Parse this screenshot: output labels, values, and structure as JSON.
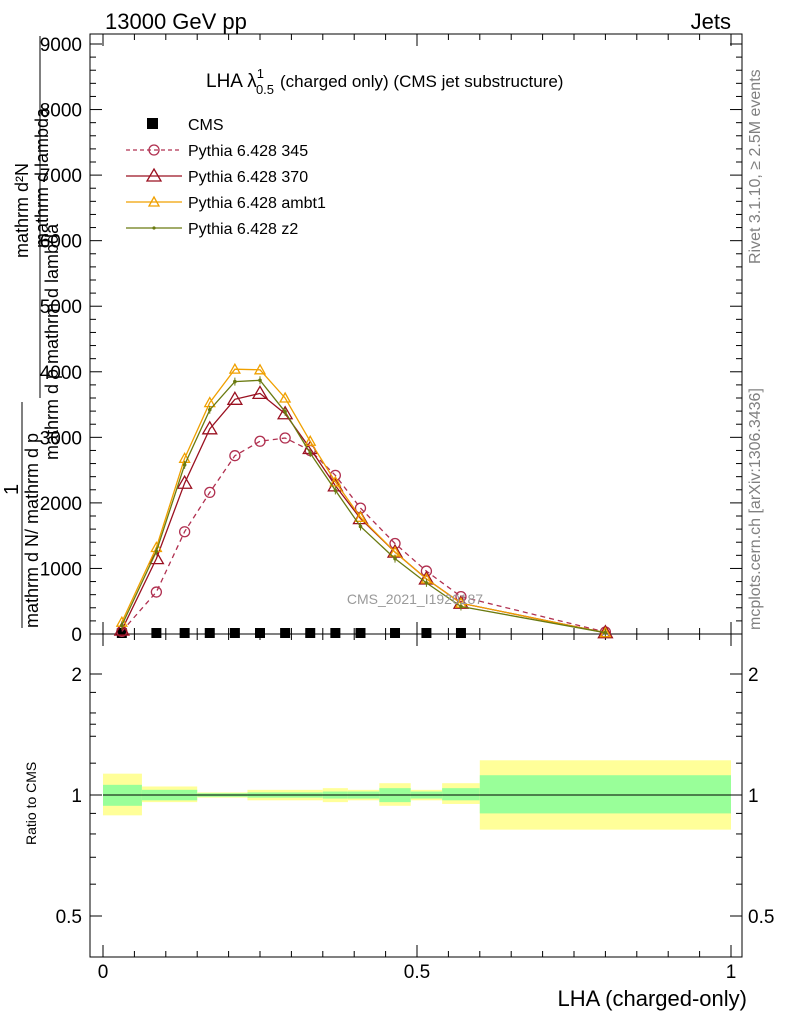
{
  "header": {
    "left": "13000 GeV pp",
    "right": "Jets"
  },
  "side_labels": {
    "rivet": "Rivet 3.1.10, ≥ 2.5M events",
    "mcplots": "mcplots.cern.ch [arXiv:1306.3436]"
  },
  "main_plot": {
    "title": "LHA λ¹₀.₅ (charged only) (CMS jet substructure)",
    "title_parts": {
      "base": "LHA λ",
      "sup": "1",
      "sub": "0.5",
      "rest": "(charged only) (CMS jet substructure)"
    },
    "ylabel": "1 / mathrm d N / mathrm d p_T mathrm d^2N / mathrm d p_T mathrm d lambda",
    "ylabel_parts": {
      "numerator_one": "1",
      "denominator": "mathrm d N/ mathrm d p",
      "numerator_big": "mathrm d²N",
      "denominator_big": "mathrm d p mathrm d lambda",
      "sub_t": "T"
    },
    "watermark": "CMS_2021_I1920187",
    "yticks": [
      "0",
      "1000",
      "2000",
      "3000",
      "4000",
      "5000",
      "6000",
      "7000",
      "8000",
      "9000"
    ],
    "yticks_display": [
      "0",
      "1000",
      "2000",
      "3000",
      "4000",
      "5000",
      "6000",
      "7000",
      "8000",
      "9000"
    ]
  },
  "ratio_plot": {
    "ylabel": "Ratio to CMS",
    "yticks": [
      "0.5",
      "1",
      "2"
    ]
  },
  "x_axis": {
    "label": "LHA (charged-only)",
    "ticks": [
      "0",
      "0.5",
      "1"
    ]
  },
  "colors": {
    "p345": "#b03050",
    "p370": "#9a1020",
    "ambt1": "#f0a000",
    "z2": "#6a7a10",
    "band_inner": "#99ff99",
    "band_outer": "#ffff99"
  },
  "legend": {
    "cms": "CMS",
    "p345": "Pythia 6.428 345",
    "p370": "Pythia 6.428 370",
    "ambt1": "Pythia 6.428 ambt1",
    "z2": "Pythia 6.428 z2"
  },
  "chart_data": {
    "type": "line",
    "xlabel": "LHA (charged-only)",
    "ylabel": "1 / mathrm d N / mathrm d p_T mathrm d^2N / mathrm d p_T mathrm d lambda",
    "xlim": [
      0,
      1
    ],
    "ylim": [
      0,
      9000
    ],
    "x": [
      0.03,
      0.085,
      0.13,
      0.17,
      0.21,
      0.25,
      0.29,
      0.33,
      0.37,
      0.41,
      0.465,
      0.515,
      0.57,
      0.8
    ],
    "series": [
      {
        "name": "CMS",
        "values": [
          0,
          0,
          0,
          0,
          0,
          0,
          0,
          0,
          0,
          0,
          0,
          0,
          0,
          null
        ]
      },
      {
        "name": "Pythia 6.428 345",
        "values": [
          40,
          640,
          1560,
          2160,
          2720,
          2940,
          2990,
          2800,
          2420,
          1920,
          1380,
          960,
          570,
          30
        ]
      },
      {
        "name": "Pythia 6.428 370",
        "values": [
          60,
          1150,
          2300,
          3130,
          3580,
          3670,
          3360,
          2830,
          2260,
          1760,
          1250,
          840,
          470,
          20
        ]
      },
      {
        "name": "Pythia 6.428 ambt1",
        "values": [
          180,
          1320,
          2680,
          3530,
          4040,
          4030,
          3600,
          2940,
          2320,
          1780,
          1250,
          840,
          470,
          20
        ]
      },
      {
        "name": "Pythia 6.428 z2",
        "values": [
          130,
          1260,
          2580,
          3420,
          3850,
          3870,
          3390,
          2760,
          2190,
          1640,
          1150,
          780,
          420,
          20
        ]
      }
    ],
    "ratio": {
      "ylabel": "Ratio to CMS",
      "ylim": [
        0.4,
        2.3
      ],
      "log": true,
      "bins": [
        {
          "lo": 0.0,
          "hi": 0.062,
          "inner": [
            0.94,
            1.06
          ],
          "outer": [
            0.89,
            1.13
          ]
        },
        {
          "lo": 0.062,
          "hi": 0.15,
          "inner": [
            0.97,
            1.03
          ],
          "outer": [
            0.96,
            1.05
          ]
        },
        {
          "lo": 0.15,
          "hi": 0.23,
          "inner": [
            0.99,
            1.01
          ],
          "outer": [
            0.985,
            1.015
          ]
        },
        {
          "lo": 0.23,
          "hi": 0.35,
          "inner": [
            0.985,
            1.015
          ],
          "outer": [
            0.97,
            1.03
          ]
        },
        {
          "lo": 0.35,
          "hi": 0.39,
          "inner": [
            0.98,
            1.02
          ],
          "outer": [
            0.96,
            1.04
          ]
        },
        {
          "lo": 0.39,
          "hi": 0.44,
          "inner": [
            0.98,
            1.02
          ],
          "outer": [
            0.97,
            1.03
          ]
        },
        {
          "lo": 0.44,
          "hi": 0.49,
          "inner": [
            0.96,
            1.04
          ],
          "outer": [
            0.94,
            1.07
          ]
        },
        {
          "lo": 0.49,
          "hi": 0.54,
          "inner": [
            0.98,
            1.02
          ],
          "outer": [
            0.97,
            1.03
          ]
        },
        {
          "lo": 0.54,
          "hi": 0.6,
          "inner": [
            0.97,
            1.04
          ],
          "outer": [
            0.95,
            1.07
          ]
        },
        {
          "lo": 0.6,
          "hi": 1.0,
          "inner": [
            0.9,
            1.12
          ],
          "outer": [
            0.82,
            1.22
          ]
        }
      ]
    }
  }
}
